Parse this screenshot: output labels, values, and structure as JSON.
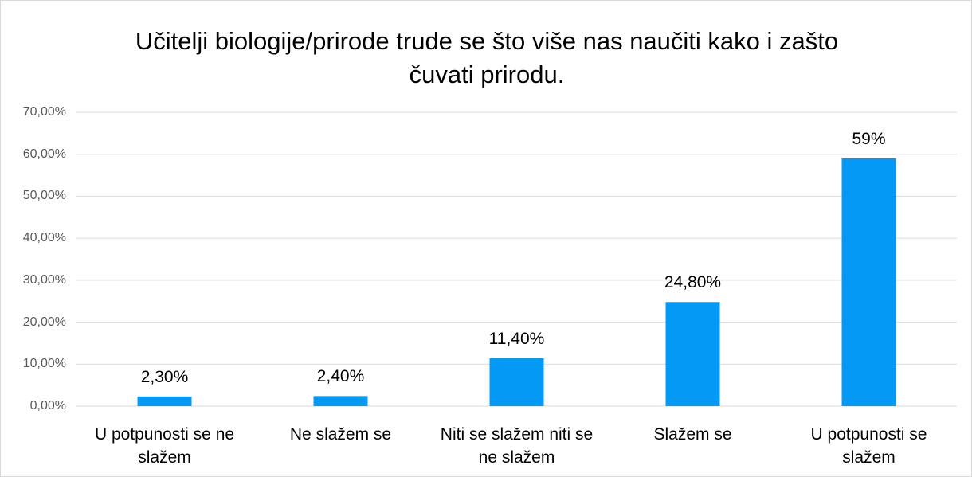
{
  "chart_data": {
    "type": "bar",
    "title": "Učitelji biologije/prirode trude se što više nas naučiti kako i zašto čuvati prirodu.",
    "categories": [
      "U potpunosti se ne slažem",
      "Ne slažem se",
      "Niti se slažem niti se ne slažem",
      "Slažem se",
      "U potpunosti se slažem"
    ],
    "values": [
      2.3,
      2.4,
      11.4,
      24.8,
      59
    ],
    "value_labels": [
      "2,30%",
      "2,40%",
      "11,40%",
      "24,80%",
      "59%"
    ],
    "color": "#0599f6",
    "ylim": [
      0,
      70
    ],
    "yticks": [
      {
        "value": 0,
        "label": "0,00%"
      },
      {
        "value": 10,
        "label": "10,00%"
      },
      {
        "value": 20,
        "label": "20,00%"
      },
      {
        "value": 30,
        "label": "30,00%"
      },
      {
        "value": 40,
        "label": "40,00%"
      },
      {
        "value": 50,
        "label": "50,00%"
      },
      {
        "value": 60,
        "label": "60,00%"
      },
      {
        "value": 70,
        "label": "70,00%"
      }
    ],
    "grid": true
  }
}
